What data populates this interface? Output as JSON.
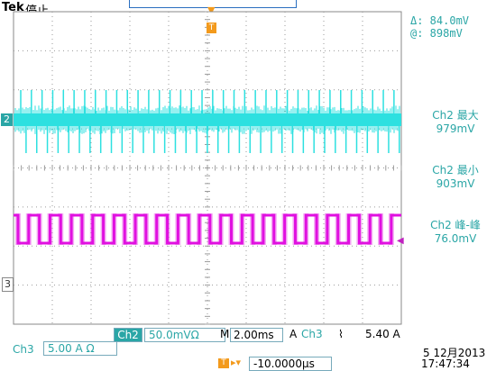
{
  "header": {
    "brand": "Tek",
    "status": "停止"
  },
  "cursors": {
    "delta": "Δ:  84.0mV",
    "at": "@:  898mV"
  },
  "measurements": [
    {
      "label": "Ch2 最大",
      "value": "979mV"
    },
    {
      "label": "Ch2 最小",
      "value": "903mV"
    },
    {
      "label": "Ch2 峰-峰",
      "value": "76.0mV"
    }
  ],
  "markers": {
    "ch2": "2",
    "ch3": "3",
    "trigger": "T"
  },
  "bottom": {
    "ch2_label": "Ch2",
    "ch2_volts": "50.0mVΩ",
    "mode_m": "M",
    "timebase": "2.00ms",
    "a_label": "A",
    "trig_source": "Ch3",
    "trig_edge": "⌇",
    "trig_level": "5.40 A",
    "ch3_label": "Ch3",
    "ch3_scale": "5.00 A Ω",
    "trig_position": "-10.0000µs",
    "date": "5 12月2013",
    "time": "17:47:34"
  },
  "colors": {
    "ch2": "#2de0e0",
    "ch3": "#e010e0",
    "trigger": "#f39a1c",
    "grid": "#9a9a9a"
  },
  "chart_data": {
    "type": "line",
    "series": [
      {
        "name": "Ch2",
        "description_values": {
          "max_mV": 979,
          "min_mV": 903,
          "pk_pk_mV": 76.0
        }
      },
      {
        "name": "Ch3",
        "period_divisions": 0.55
      }
    ],
    "grid": true
  }
}
